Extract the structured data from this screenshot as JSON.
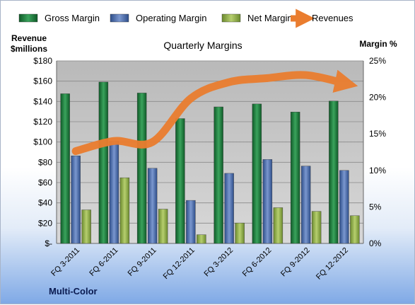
{
  "chart_data": {
    "type": "bar",
    "title": "Quarterly Margins",
    "categories": [
      "FQ 3-2011",
      "FQ 6-2011",
      "FQ 9-2011",
      "FQ 12-2011",
      "FQ 3-2012",
      "FQ 6-2012",
      "FQ 9-2012",
      "FQ 12-2012"
    ],
    "series": [
      {
        "name": "Gross Margin",
        "axis": "right",
        "color": "#1e7a3c",
        "values": [
          20.5,
          22.1,
          20.6,
          17.1,
          18.7,
          19.1,
          18.0,
          19.5
        ]
      },
      {
        "name": "Operating Margin",
        "axis": "right",
        "color": "#4f6fae",
        "values": [
          12.0,
          14.0,
          10.3,
          5.9,
          9.6,
          11.5,
          10.6,
          10.0
        ]
      },
      {
        "name": "Net Margin",
        "axis": "right",
        "color": "#8fae4a",
        "values": [
          4.6,
          9.0,
          4.7,
          1.2,
          2.8,
          4.9,
          4.4,
          3.8
        ]
      },
      {
        "name": "Revenues",
        "axis": "left",
        "type": "line",
        "color": "#ea7d2f",
        "values": [
          91,
          101,
          100,
          143,
          159,
          163,
          166,
          158
        ]
      }
    ],
    "y_left": {
      "label_line1": "Revenue",
      "label_line2": "$millions",
      "min": 0,
      "max": 180,
      "ticks": [
        "$-",
        "$20",
        "$40",
        "$60",
        "$80",
        "$100",
        "$120",
        "$140",
        "$160",
        "$180"
      ]
    },
    "y_right": {
      "label": "Margin %",
      "min": 0,
      "max": 25,
      "ticks": [
        "0%",
        "5%",
        "10%",
        "15%",
        "20%",
        "25%"
      ]
    },
    "legend_position": "top",
    "grid": true,
    "plot_background": "#c8c8c8"
  },
  "footer": {
    "company": "Multi-Color"
  }
}
